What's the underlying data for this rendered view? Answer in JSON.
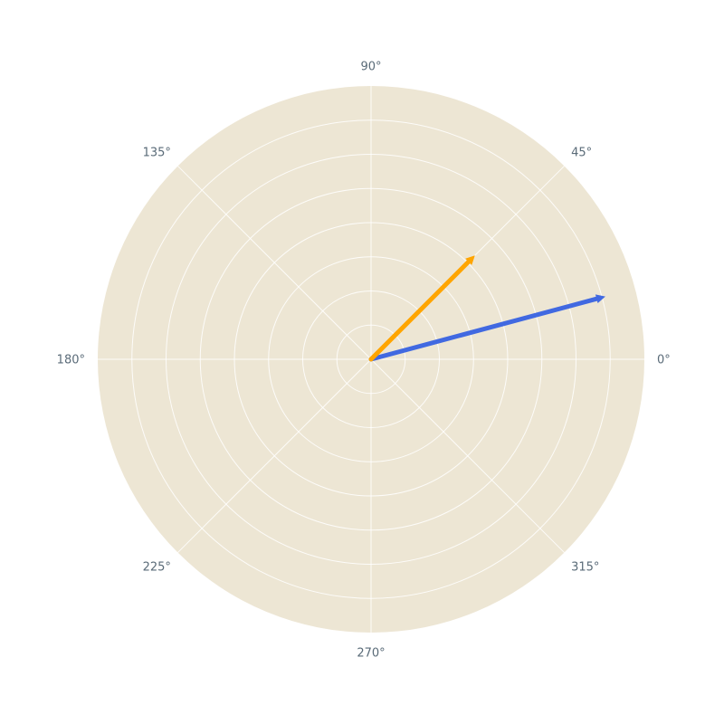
{
  "chart_data": {
    "type": "polar",
    "title": "",
    "angular_axis": {
      "ticks": [
        0,
        45,
        90,
        135,
        180,
        225,
        270,
        315
      ],
      "tick_labels": [
        "0°",
        "45°",
        "90°",
        "135°",
        "180°",
        "225°",
        "270°",
        "315°"
      ],
      "direction": "counterclockwise",
      "rotation": 0
    },
    "radial_axis": {
      "range": [
        0,
        8
      ],
      "ticks": [
        1,
        2,
        3,
        4,
        5,
        6,
        7,
        8
      ],
      "tick_labels_visible": false
    },
    "grid": true,
    "legend": false,
    "series": [
      {
        "kind": "vector",
        "r": 7.1,
        "theta": 15,
        "color": "#4169e1"
      },
      {
        "kind": "vector",
        "r": 4.3,
        "theta": 45,
        "color": "#ffa500"
      }
    ],
    "colors": {
      "plot_background": "#ede6d4",
      "grid": "#ffffff",
      "tick_text": "#5a6b78"
    }
  }
}
